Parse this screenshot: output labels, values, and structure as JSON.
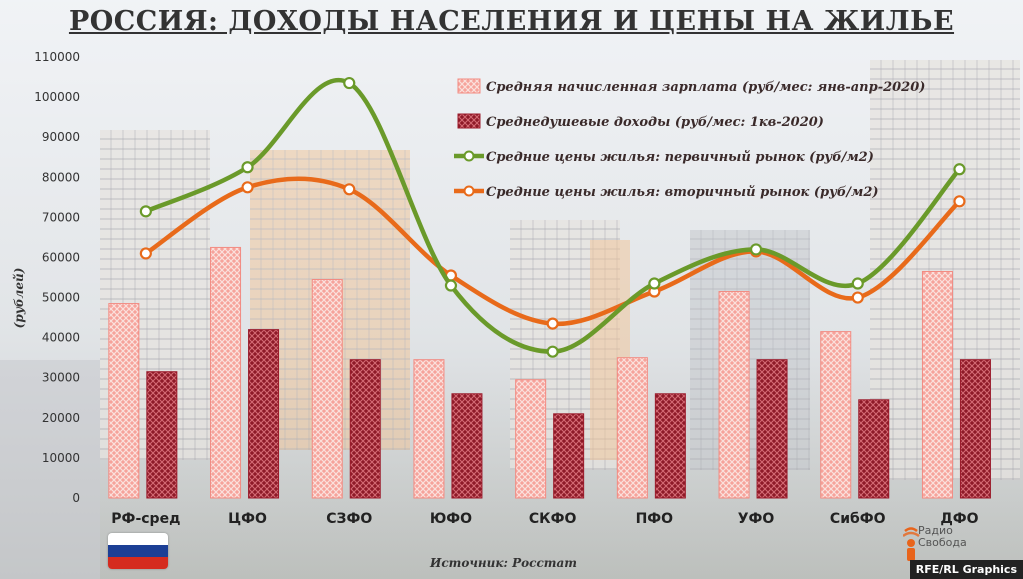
{
  "title": "РОССИЯ: ДОХОДЫ НАСЕЛЕНИЯ И ЦЕНЫ НА ЖИЛЬЕ",
  "source": "Источник: Росстат",
  "logo_text": [
    "Радио",
    "Свобода"
  ],
  "credit": "RFE/RL Graphics",
  "colors": {
    "salary": "#f28b82",
    "income": "#9b1b2b",
    "primary_market": "#6a9a2a",
    "secondary_market": "#e86a1a"
  },
  "chart_data": {
    "type": "bar",
    "title": "РОССИЯ: ДОХОДЫ НАСЕЛЕНИЯ И ЦЕНЫ НА ЖИЛЬЕ",
    "ylabel": "(рублей)",
    "xlabel": "",
    "ylim": [
      0,
      110000
    ],
    "yticks": [
      0,
      10000,
      20000,
      30000,
      40000,
      50000,
      60000,
      70000,
      80000,
      90000,
      100000,
      110000
    ],
    "categories": [
      "РФ-сред",
      "ЦФО",
      "СЗФО",
      "ЮФО",
      "СКФО",
      "ПФО",
      "УФО",
      "СибФО",
      "ДФО"
    ],
    "legend_position": "top-right",
    "grid": false,
    "series": [
      {
        "name": "Средняя начисленная зарплата (руб/мес: янв-апр-2020)",
        "type": "bar",
        "values": [
          48500,
          62500,
          54500,
          34500,
          29500,
          35000,
          51500,
          41500,
          56500
        ]
      },
      {
        "name": "Среднедушевые доходы (руб/мес: 1кв-2020)",
        "type": "bar",
        "values": [
          31500,
          42000,
          34500,
          26000,
          21000,
          26000,
          34500,
          24500,
          34500
        ]
      },
      {
        "name": "Средние цены жилья: первичный рынок (руб/м2)",
        "type": "line",
        "values": [
          71500,
          82500,
          103500,
          53000,
          36500,
          53500,
          62000,
          53500,
          82000
        ]
      },
      {
        "name": "Средние цены жилья: вторичный рынок (руб/м2)",
        "type": "line",
        "values": [
          61000,
          77500,
          77000,
          55500,
          43500,
          51500,
          61500,
          50000,
          74000
        ]
      }
    ]
  }
}
